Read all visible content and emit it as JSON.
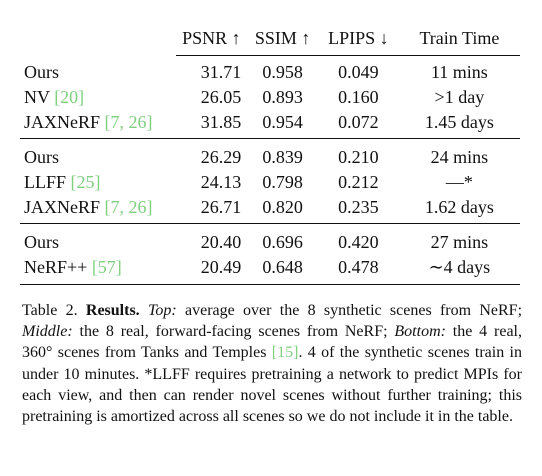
{
  "table": {
    "headers": {
      "method": "",
      "psnr": "PSNR ↑",
      "ssim": "SSIM ↑",
      "lpips": "LPIPS ↓",
      "time": "Train Time"
    },
    "groups": [
      {
        "rows": [
          {
            "method": "Ours",
            "cite": "",
            "psnr": "31.71",
            "ssim": "0.958",
            "lpips": "0.049",
            "time": "11 mins",
            "bold": [
              "ssim",
              "lpips",
              "time"
            ]
          },
          {
            "method": "NV",
            "cite": "[20]",
            "psnr": "26.05",
            "ssim": "0.893",
            "lpips": "0.160",
            "time": ">1 day",
            "bold": []
          },
          {
            "method": "JAXNeRF",
            "cite": "[7, 26]",
            "psnr": "31.85",
            "ssim": "0.954",
            "lpips": "0.072",
            "time": "1.45 days",
            "bold": [
              "psnr"
            ]
          }
        ]
      },
      {
        "rows": [
          {
            "method": "Ours",
            "cite": "",
            "psnr": "26.29",
            "ssim": "0.839",
            "lpips": "0.210",
            "time": "24 mins",
            "bold": [
              "ssim",
              "lpips",
              "time"
            ]
          },
          {
            "method": "LLFF",
            "cite": "[25]",
            "psnr": "24.13",
            "ssim": "0.798",
            "lpips": "0.212",
            "time": "—*",
            "bold": []
          },
          {
            "method": "JAXNeRF",
            "cite": "[7, 26]",
            "psnr": "26.71",
            "ssim": "0.820",
            "lpips": "0.235",
            "time": "1.62 days",
            "bold": [
              "psnr"
            ]
          }
        ]
      },
      {
        "rows": [
          {
            "method": "Ours",
            "cite": "",
            "psnr": "20.40",
            "ssim": "0.696",
            "lpips": "0.420",
            "time": "27 mins",
            "bold": [
              "ssim",
              "lpips",
              "time"
            ]
          },
          {
            "method": "NeRF++",
            "cite": "[57]",
            "psnr": "20.49",
            "ssim": "0.648",
            "lpips": "0.478",
            "time": "∼4 days",
            "bold": [
              "psnr"
            ]
          }
        ]
      }
    ]
  },
  "caption": {
    "label": "Table 2.",
    "title": "Results.",
    "top_label": "Top:",
    "top_text": " average over the 8 synthetic scenes from NeRF; ",
    "middle_label": "Middle:",
    "middle_text": " the 8 real, forward-facing scenes from NeRF; ",
    "bottom_label": "Bottom:",
    "bottom_text_1": " the 4 real, 360° scenes from Tanks and Temples ",
    "bottom_cite": "[15]",
    "bottom_text_2": ". 4 of the synthetic scenes train in under 10 minutes. *LLFF requires pretraining a network to predict MPIs for each view, and then can render novel scenes without further training; this pretraining is amortized across all scenes so we do not include it in the table."
  }
}
